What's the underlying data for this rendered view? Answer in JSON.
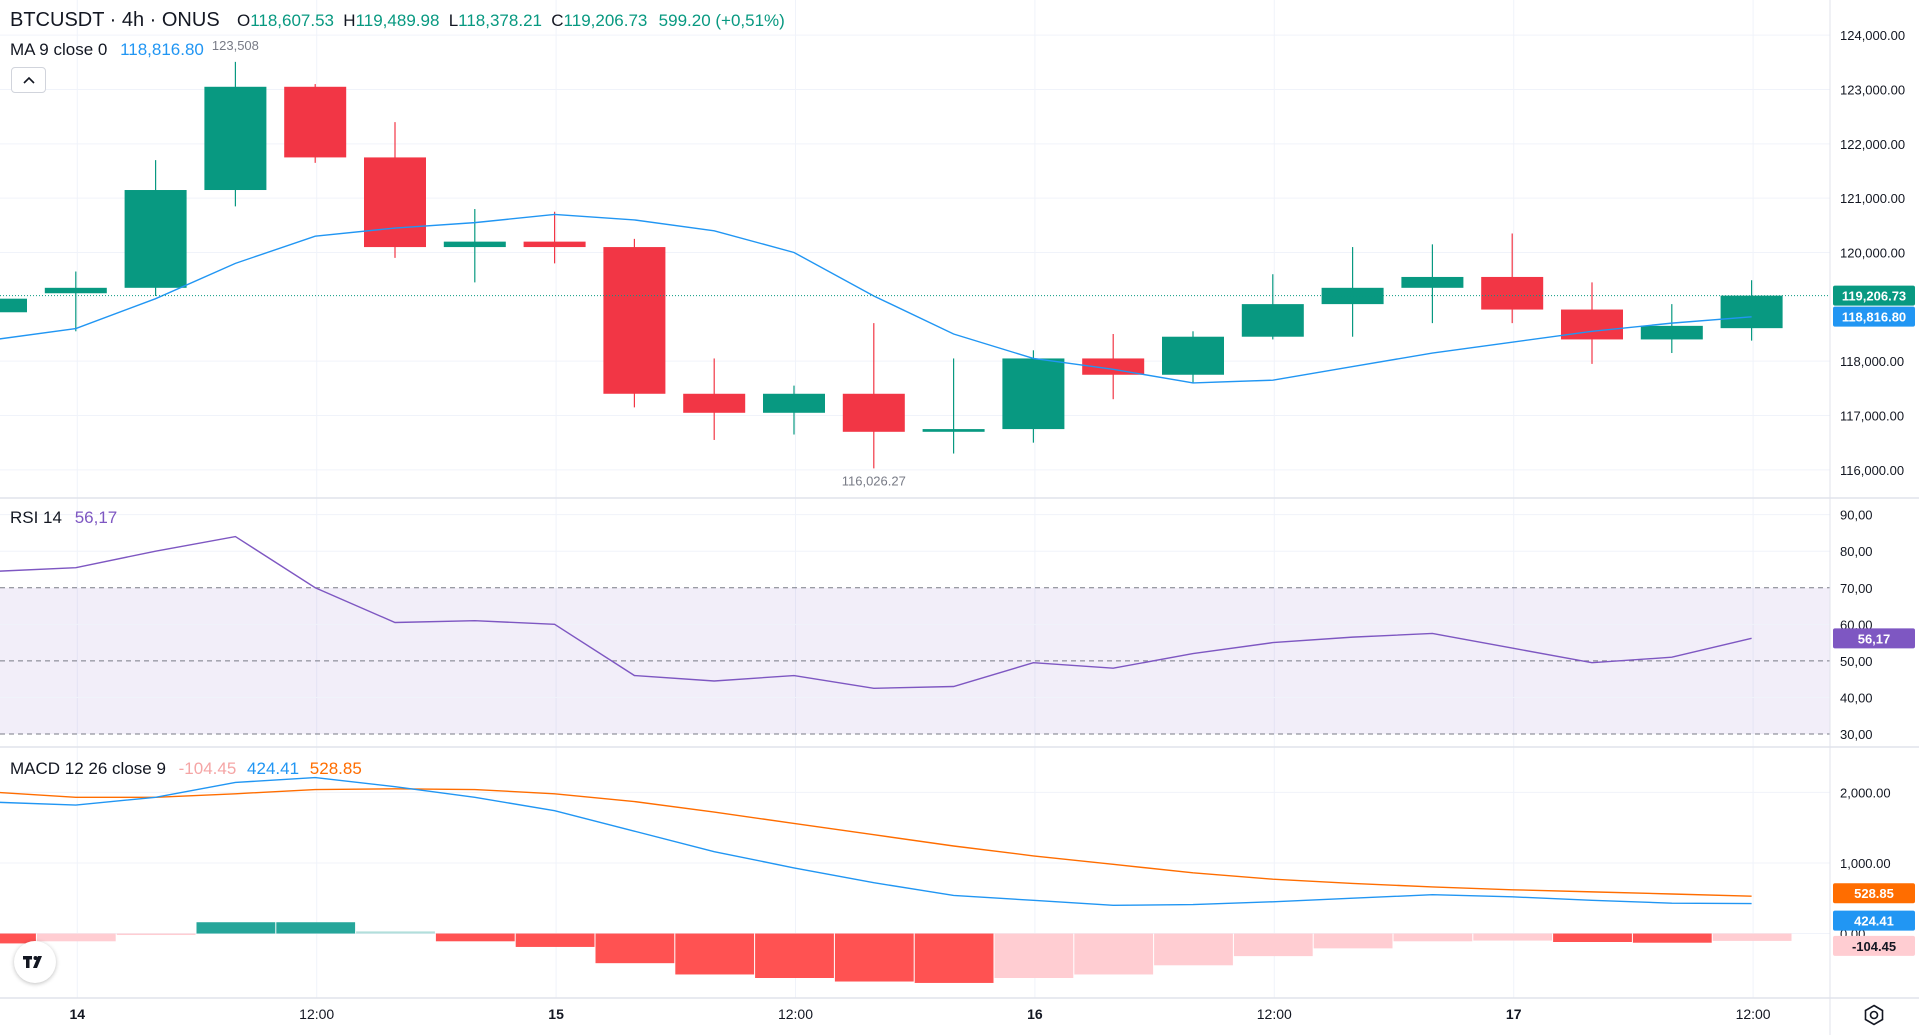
{
  "header": {
    "symbol": "BTCUSDT · 4h · ONUS",
    "open_label": "O",
    "open": "118,607.53",
    "high_label": "H",
    "high": "119,489.98",
    "low_label": "L",
    "low": "118,378.21",
    "close_label": "C",
    "close": "119,206.73",
    "change": "599.20 (+0,51%)"
  },
  "ma_legend": {
    "label": "MA 9 close 0",
    "value": "118,816.80"
  },
  "rsi_legend": {
    "label": "RSI 14",
    "value": "56,17"
  },
  "macd_legend": {
    "label": "MACD 12 26 close 9",
    "hist": "-104.45",
    "macd": "424.41",
    "signal": "528.85"
  },
  "price_badges": {
    "last": "119,206.73",
    "ma": "118,816.80"
  },
  "rsi_badge": "56,17",
  "macd_badges": {
    "signal": "528.85",
    "macd": "424.41",
    "hist": "-104.45"
  },
  "annotations": {
    "high": "123,508",
    "low": "116,026.27"
  },
  "colors": {
    "up": "#089981",
    "down": "#f23645",
    "ma": "#2962ff",
    "rsi": "#7e57c2",
    "macd_line": "#2196f3",
    "signal_line": "#ff6d00",
    "hist_pos_strong": "#26a69a",
    "hist_pos_weak": "#b2dfdb",
    "hist_neg_strong": "#ff5252",
    "hist_neg_weak": "#ffcdd2"
  },
  "icons": {
    "collapse": "chevron-up-icon",
    "logo": "tradingview-logo",
    "settings": "gear-icon"
  },
  "chart_data": [
    {
      "type": "candlestick",
      "pane": "price",
      "title": "BTCUSDT · 4h · ONUS",
      "time_labels": [
        "14",
        "12:00",
        "15",
        "12:00",
        "16",
        "12:00",
        "17",
        "12:00"
      ],
      "candles": [
        {
          "o": 118900,
          "h": 119500,
          "l": 118600,
          "c": 119150
        },
        {
          "o": 119250,
          "h": 119650,
          "l": 118550,
          "c": 119350
        },
        {
          "o": 119350,
          "h": 121700,
          "l": 119200,
          "c": 121150
        },
        {
          "o": 121150,
          "h": 123508,
          "l": 120850,
          "c": 123050
        },
        {
          "o": 123050,
          "h": 123100,
          "l": 121650,
          "c": 121750
        },
        {
          "o": 121750,
          "h": 122400,
          "l": 119900,
          "c": 120100
        },
        {
          "o": 120100,
          "h": 120800,
          "l": 119450,
          "c": 120200
        },
        {
          "o": 120200,
          "h": 120750,
          "l": 119800,
          "c": 120100
        },
        {
          "o": 120100,
          "h": 120250,
          "l": 117150,
          "c": 117400
        },
        {
          "o": 117400,
          "h": 118050,
          "l": 116550,
          "c": 117050
        },
        {
          "o": 117050,
          "h": 117550,
          "l": 116650,
          "c": 117400
        },
        {
          "o": 117400,
          "h": 118700,
          "l": 116026.27,
          "c": 116700
        },
        {
          "o": 116700,
          "h": 118050,
          "l": 116300,
          "c": 116750
        },
        {
          "o": 116750,
          "h": 118200,
          "l": 116500,
          "c": 118050
        },
        {
          "o": 118050,
          "h": 118500,
          "l": 117300,
          "c": 117750
        },
        {
          "o": 117750,
          "h": 118550,
          "l": 117600,
          "c": 118450
        },
        {
          "o": 118450,
          "h": 119600,
          "l": 118400,
          "c": 119050
        },
        {
          "o": 119050,
          "h": 120100,
          "l": 118450,
          "c": 119350
        },
        {
          "o": 119350,
          "h": 120150,
          "l": 118700,
          "c": 119550
        },
        {
          "o": 119550,
          "h": 120350,
          "l": 118700,
          "c": 118950
        },
        {
          "o": 118950,
          "h": 119450,
          "l": 117950,
          "c": 118400
        },
        {
          "o": 118400,
          "h": 119050,
          "l": 118150,
          "c": 118650
        },
        {
          "o": 118607.53,
          "h": 119489.98,
          "l": 118378.21,
          "c": 119206.73
        }
      ],
      "ma_series": {
        "name": "MA 9 close 0",
        "values": [
          118400,
          118600,
          119150,
          119800,
          120300,
          120450,
          120550,
          120700,
          120600,
          120400,
          120000,
          119200,
          118500,
          118050,
          117850,
          117600,
          117650,
          117900,
          118150,
          118350,
          118550,
          118700,
          118816.8
        ]
      },
      "y_ticks": [
        "124,000.00",
        "123,000.00",
        "122,000.00",
        "121,000.00",
        "120,000.00",
        "118,000.00",
        "117,000.00",
        "116,000.00"
      ],
      "ylim": [
        115500,
        124500
      ]
    },
    {
      "type": "line",
      "pane": "rsi",
      "series": [
        {
          "name": "RSI 14",
          "values": [
            74.5,
            75.5,
            80,
            84,
            70,
            60.5,
            61,
            60,
            46,
            44.5,
            46,
            42.5,
            43,
            49.5,
            48,
            52,
            55,
            56.5,
            57.5,
            53.5,
            49.5,
            51,
            56.17
          ]
        }
      ],
      "bands": [
        30,
        50,
        70
      ],
      "y_ticks": [
        "90,00",
        "80,00",
        "70,00",
        "60,00",
        "50,00",
        "40,00",
        "30,00"
      ],
      "ylim": [
        27,
        94
      ]
    },
    {
      "type": "bar",
      "pane": "macd",
      "series": [
        {
          "name": "MACD",
          "values": [
            1860,
            1820,
            1930,
            2140,
            2210,
            2080,
            1930,
            1740,
            1450,
            1160,
            930,
            720,
            540,
            470,
            400,
            410,
            450,
            500,
            550,
            520,
            470,
            430,
            424.41
          ]
        },
        {
          "name": "Signal",
          "values": [
            2000,
            1930,
            1930,
            1980,
            2040,
            2050,
            2040,
            1980,
            1870,
            1720,
            1560,
            1400,
            1240,
            1100,
            980,
            860,
            770,
            710,
            660,
            620,
            590,
            560,
            528.85
          ]
        },
        {
          "name": "Histogram",
          "values": [
            -140,
            -110,
            -2,
            160,
            160,
            30,
            -110,
            -190,
            -420,
            -580,
            -630,
            -680,
            -700,
            -630,
            -580,
            -450,
            -320,
            -210,
            -110,
            -100,
            -120,
            -130,
            -104.45
          ]
        }
      ],
      "y_ticks": [
        "2,000.00",
        "1,000.00",
        "0.00"
      ],
      "ylim": [
        -800,
        2600
      ]
    }
  ]
}
